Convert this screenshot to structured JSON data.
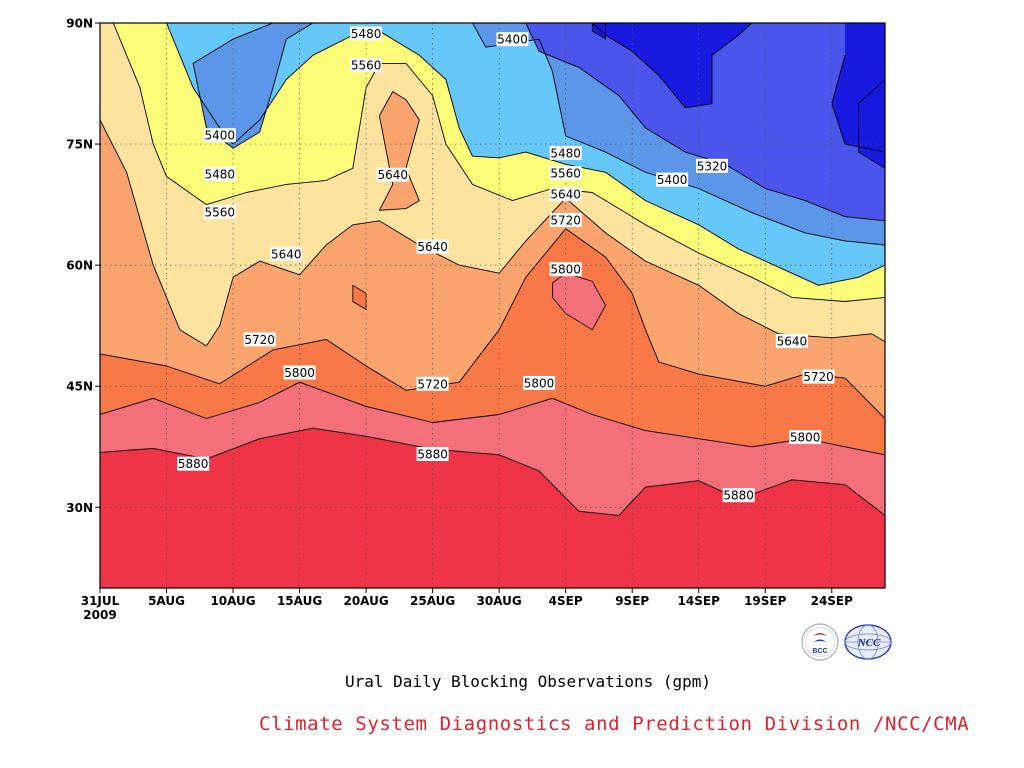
{
  "chart_data": {
    "type": "heatmap",
    "subtype": "filled-contour",
    "title": "Ural Daily Blocking Observations (gpm)",
    "variable_unit": "gpm",
    "x_axis": {
      "kind": "date",
      "start": "2009-07-31",
      "end": "2009-09-28",
      "tick_labels": [
        "31JUL",
        "5AUG",
        "10AUG",
        "15AUG",
        "20AUG",
        "25AUG",
        "30AUG",
        "4SEP",
        "9SEP",
        "14SEP",
        "19SEP",
        "24SEP"
      ],
      "tick_dates": [
        "2009-07-31",
        "2009-08-05",
        "2009-08-10",
        "2009-08-15",
        "2009-08-20",
        "2009-08-25",
        "2009-08-30",
        "2009-09-04",
        "2009-09-09",
        "2009-09-14",
        "2009-09-19",
        "2009-09-24"
      ],
      "year_label": "2009"
    },
    "y_axis": {
      "kind": "latitude",
      "range": [
        20,
        90
      ],
      "tick_values": [
        30,
        45,
        60,
        75,
        90
      ],
      "tick_labels": [
        "30N",
        "45N",
        "60N",
        "75N",
        "90N"
      ]
    },
    "grid": "dotted",
    "contour_levels": [
      5240,
      5320,
      5400,
      5480,
      5560,
      5640,
      5720,
      5800,
      5880
    ],
    "fill_colors": [
      {
        "above": 0,
        "color": "#1919e0"
      },
      {
        "above": 5240,
        "color": "#4b55ec"
      },
      {
        "above": 5320,
        "color": "#5b96e8"
      },
      {
        "above": 5400,
        "color": "#66c8fa"
      },
      {
        "above": 5480,
        "color": "#fdfd7a"
      },
      {
        "above": 5560,
        "color": "#fde39e"
      },
      {
        "above": 5640,
        "color": "#fba46e"
      },
      {
        "above": 5720,
        "color": "#f97848"
      },
      {
        "above": 5800,
        "color": "#f36f7a"
      },
      {
        "above": 5880,
        "color": "#f03448"
      }
    ],
    "contours": [
      {
        "level": 5880,
        "points": [
          [
            "2009-07-31",
            36.8
          ],
          [
            "2009-08-04",
            37.3
          ],
          [
            "2009-08-08",
            36.0
          ],
          [
            "2009-08-12",
            38.5
          ],
          [
            "2009-08-16",
            39.8
          ],
          [
            "2009-08-20",
            38.8
          ],
          [
            "2009-08-25",
            37.2
          ],
          [
            "2009-08-30",
            36.5
          ],
          [
            "2009-09-02",
            34.5
          ],
          [
            "2009-09-05",
            29.5
          ],
          [
            "2009-09-08",
            29.0
          ],
          [
            "2009-09-10",
            32.5
          ],
          [
            "2009-09-14",
            33.3
          ],
          [
            "2009-09-17",
            31.0
          ],
          [
            "2009-09-21",
            33.4
          ],
          [
            "2009-09-25",
            32.8
          ],
          [
            "2009-09-28",
            29.0
          ]
        ]
      },
      {
        "level": 5800,
        "points": [
          [
            "2009-07-31",
            41.5
          ],
          [
            "2009-08-04",
            43.5
          ],
          [
            "2009-08-08",
            41.0
          ],
          [
            "2009-08-12",
            43.0
          ],
          [
            "2009-08-15",
            45.5
          ],
          [
            "2009-08-20",
            42.5
          ],
          [
            "2009-08-25",
            40.5
          ],
          [
            "2009-08-30",
            41.5
          ],
          [
            "2009-09-03",
            43.5
          ],
          [
            "2009-09-06",
            41.5
          ],
          [
            "2009-09-10",
            39.5
          ],
          [
            "2009-09-14",
            38.5
          ],
          [
            "2009-09-18",
            37.5
          ],
          [
            "2009-09-22",
            38.5
          ],
          [
            "2009-09-25",
            37.5
          ],
          [
            "2009-09-28",
            36.5
          ]
        ]
      },
      {
        "level": 5720,
        "points": [
          [
            "2009-07-31",
            49.0
          ],
          [
            "2009-08-05",
            47.5
          ],
          [
            "2009-08-09",
            45.3
          ],
          [
            "2009-08-13",
            49.5
          ],
          [
            "2009-08-17",
            50.8
          ],
          [
            "2009-08-20",
            47.5
          ],
          [
            "2009-08-23",
            44.5
          ],
          [
            "2009-08-27",
            45.5
          ],
          [
            "2009-08-30",
            52.0
          ],
          [
            "2009-09-01",
            58.5
          ],
          [
            "2009-09-04",
            64.5
          ],
          [
            "2009-09-07",
            61.0
          ],
          [
            "2009-09-09",
            56.5
          ],
          [
            "2009-09-10",
            52.0
          ],
          [
            "2009-09-11",
            48.0
          ],
          [
            "2009-09-14",
            46.5
          ],
          [
            "2009-09-19",
            45.0
          ],
          [
            "2009-09-22",
            46.5
          ],
          [
            "2009-09-25",
            46.0
          ],
          [
            "2009-09-28",
            41.0
          ]
        ]
      },
      {
        "level": 5640,
        "points": [
          [
            "2009-07-31",
            78.0
          ],
          [
            "2009-08-02",
            71.5
          ],
          [
            "2009-08-04",
            60.0
          ],
          [
            "2009-08-06",
            52.0
          ],
          [
            "2009-08-08",
            50.0
          ],
          [
            "2009-08-09",
            52.5
          ],
          [
            "2009-08-10",
            58.5
          ],
          [
            "2009-08-12",
            60.5
          ],
          [
            "2009-08-15",
            58.8
          ],
          [
            "2009-08-17",
            62.5
          ],
          [
            "2009-08-19",
            65.0
          ],
          [
            "2009-08-21",
            65.5
          ],
          [
            "2009-08-24",
            62.5
          ],
          [
            "2009-08-27",
            60.0
          ],
          [
            "2009-08-30",
            59.0
          ],
          [
            "2009-09-01",
            63.0
          ],
          [
            "2009-09-04",
            68.3
          ],
          [
            "2009-09-07",
            64.0
          ],
          [
            "2009-09-10",
            60.5
          ],
          [
            "2009-09-14",
            57.5
          ],
          [
            "2009-09-17",
            54.0
          ],
          [
            "2009-09-20",
            51.5
          ],
          [
            "2009-09-24",
            51.0
          ],
          [
            "2009-09-27",
            51.5
          ],
          [
            "2009-09-28",
            50.5
          ]
        ]
      },
      {
        "level": 5640,
        "closed": true,
        "points": [
          [
            "2009-08-21",
            66.8
          ],
          [
            "2009-08-22",
            70.0
          ],
          [
            "2009-08-21",
            78.5
          ],
          [
            "2009-08-22",
            81.5
          ],
          [
            "2009-08-23",
            80.5
          ],
          [
            "2009-08-24",
            78.0
          ],
          [
            "2009-08-23",
            72.0
          ],
          [
            "2009-08-24",
            68.0
          ],
          [
            "2009-08-23",
            67.0
          ]
        ]
      },
      {
        "level": 5560,
        "points": [
          [
            "2009-08-01",
            90.0
          ],
          [
            "2009-08-03",
            82.0
          ],
          [
            "2009-08-04",
            75.0
          ],
          [
            "2009-08-05",
            71.0
          ],
          [
            "2009-08-08",
            67.5
          ],
          [
            "2009-08-11",
            69.0
          ],
          [
            "2009-08-14",
            70.0
          ],
          [
            "2009-08-17",
            70.5
          ],
          [
            "2009-08-19",
            72.0
          ],
          [
            "2009-08-20",
            82.0
          ],
          [
            "2009-08-21",
            85.0
          ],
          [
            "2009-08-23",
            85.0
          ],
          [
            "2009-08-25",
            81.0
          ],
          [
            "2009-08-26",
            75.0
          ],
          [
            "2009-08-28",
            70.0
          ],
          [
            "2009-08-31",
            68.0
          ],
          [
            "2009-09-03",
            69.5
          ],
          [
            "2009-09-06",
            69.0
          ],
          [
            "2009-09-10",
            65.0
          ],
          [
            "2009-09-14",
            61.5
          ],
          [
            "2009-09-18",
            58.5
          ],
          [
            "2009-09-21",
            56.0
          ],
          [
            "2009-09-25",
            55.5
          ],
          [
            "2009-09-28",
            56.0
          ]
        ]
      },
      {
        "level": 5480,
        "points": [
          [
            "2009-08-05",
            90.0
          ],
          [
            "2009-08-07",
            82.0
          ],
          [
            "2009-08-09",
            77.0
          ],
          [
            "2009-08-10",
            75.0
          ],
          [
            "2009-08-12",
            78.0
          ],
          [
            "2009-08-14",
            83.0
          ],
          [
            "2009-08-16",
            86.0
          ],
          [
            "2009-08-19",
            88.5
          ],
          [
            "2009-08-21",
            89.0
          ],
          [
            "2009-08-24",
            86.0
          ],
          [
            "2009-08-26",
            83.0
          ],
          [
            "2009-08-27",
            77.0
          ],
          [
            "2009-08-28",
            73.5
          ],
          [
            "2009-08-30",
            73.3
          ],
          [
            "2009-09-01",
            74.0
          ],
          [
            "2009-09-04",
            72.5
          ],
          [
            "2009-09-07",
            71.5
          ],
          [
            "2009-09-10",
            68.0
          ],
          [
            "2009-09-14",
            65.0
          ],
          [
            "2009-09-17",
            62.0
          ],
          [
            "2009-09-21",
            59.0
          ],
          [
            "2009-09-23",
            57.5
          ],
          [
            "2009-09-26",
            58.5
          ],
          [
            "2009-09-28",
            60.0
          ]
        ]
      },
      {
        "level": 5400,
        "closed": true,
        "points": [
          [
            "2009-08-07",
            85.0
          ],
          [
            "2009-08-08",
            77.0
          ],
          [
            "2009-08-10",
            74.5
          ],
          [
            "2009-08-12",
            76.5
          ],
          [
            "2009-08-13",
            82.0
          ],
          [
            "2009-08-14",
            88.0
          ],
          [
            "2009-08-16",
            90.0
          ],
          [
            "2009-08-13",
            90.0
          ],
          [
            "2009-08-10",
            88.0
          ]
        ]
      },
      {
        "level": 5400,
        "points": [
          [
            "2009-08-28",
            90.0
          ],
          [
            "2009-08-29",
            87.0
          ],
          [
            "2009-09-02",
            88.0
          ],
          [
            "2009-09-03",
            84.0
          ],
          [
            "2009-09-04",
            76.0
          ],
          [
            "2009-09-07",
            74.0
          ],
          [
            "2009-09-10",
            71.5
          ],
          [
            "2009-09-14",
            69.5
          ],
          [
            "2009-09-18",
            66.5
          ],
          [
            "2009-09-22",
            64.0
          ],
          [
            "2009-09-25",
            63.0
          ],
          [
            "2009-09-28",
            62.5
          ]
        ]
      },
      {
        "level": 5320,
        "points": [
          [
            "2009-09-01",
            90.0
          ],
          [
            "2009-09-02",
            86.5
          ],
          [
            "2009-09-05",
            84.5
          ],
          [
            "2009-09-08",
            81.0
          ],
          [
            "2009-09-10",
            77.0
          ],
          [
            "2009-09-13",
            74.0
          ],
          [
            "2009-09-16",
            72.5
          ],
          [
            "2009-09-19",
            69.5
          ],
          [
            "2009-09-22",
            68.0
          ],
          [
            "2009-09-25",
            66.0
          ],
          [
            "2009-09-28",
            65.5
          ]
        ]
      },
      {
        "level": 5240,
        "points": [
          [
            "2009-09-06",
            90.0
          ],
          [
            "2009-09-07",
            88.5
          ],
          [
            "2009-09-09",
            86.5
          ],
          [
            "2009-09-11",
            83.5
          ],
          [
            "2009-09-13",
            79.5
          ],
          [
            "2009-09-15",
            80.0
          ],
          [
            "2009-09-15",
            86.0
          ],
          [
            "2009-09-17",
            88.5
          ],
          [
            "2009-09-18",
            90.0
          ]
        ]
      },
      {
        "level": 5240,
        "points": [
          [
            "2009-09-25",
            86.0
          ],
          [
            "2009-09-24",
            80.0
          ],
          [
            "2009-09-25",
            75.0
          ],
          [
            "2009-09-28",
            74.0
          ]
        ]
      }
    ],
    "extrema_regions": [
      {
        "kind": "high",
        "above": 5800,
        "points": [
          [
            "2009-09-03",
            57.8
          ],
          [
            "2009-09-04",
            59.0
          ],
          [
            "2009-09-06",
            58.0
          ],
          [
            "2009-09-07",
            55.0
          ],
          [
            "2009-09-06",
            52.0
          ],
          [
            "2009-09-04",
            54.0
          ],
          [
            "2009-09-03",
            56.0
          ]
        ]
      },
      {
        "kind": "high",
        "above": 5720,
        "points": [
          [
            "2009-08-19",
            57.5
          ],
          [
            "2009-08-20",
            56.5
          ],
          [
            "2009-08-20",
            54.5
          ],
          [
            "2009-08-19",
            55.5
          ]
        ]
      },
      {
        "kind": "low",
        "below": 5240,
        "points": [
          [
            "2009-09-06",
            90.0
          ],
          [
            "2009-09-06",
            89.0
          ],
          [
            "2009-09-07",
            88.0
          ],
          [
            "2009-09-07",
            90.0
          ]
        ]
      },
      {
        "kind": "low",
        "below": 5240,
        "points": [
          [
            "2009-09-28",
            83.0
          ],
          [
            "2009-09-26",
            80.0
          ],
          [
            "2009-09-26",
            74.0
          ],
          [
            "2009-09-28",
            72.0
          ]
        ]
      }
    ],
    "contour_labels": [
      {
        "text": "5480",
        "date": "2009-08-20",
        "lat": 88.7
      },
      {
        "text": "5400",
        "date": "2009-08-31",
        "lat": 88.0
      },
      {
        "text": "5560",
        "date": "2009-08-20",
        "lat": 84.8
      },
      {
        "text": "5400",
        "date": "2009-08-09",
        "lat": 76.1
      },
      {
        "text": "5640",
        "date": "2009-08-22",
        "lat": 71.2
      },
      {
        "text": "5480",
        "date": "2009-08-09",
        "lat": 71.3
      },
      {
        "text": "5480",
        "date": "2009-09-04",
        "lat": 73.9
      },
      {
        "text": "5320",
        "date": "2009-09-15",
        "lat": 72.3
      },
      {
        "text": "5560",
        "date": "2009-09-04",
        "lat": 71.4
      },
      {
        "text": "5400",
        "date": "2009-09-12",
        "lat": 70.6
      },
      {
        "text": "5640",
        "date": "2009-09-04",
        "lat": 68.8
      },
      {
        "text": "5560",
        "date": "2009-08-09",
        "lat": 66.6
      },
      {
        "text": "5720",
        "date": "2009-09-04",
        "lat": 65.6
      },
      {
        "text": "5640",
        "date": "2009-08-14",
        "lat": 61.4
      },
      {
        "text": "5640",
        "date": "2009-08-25",
        "lat": 62.3
      },
      {
        "text": "5800",
        "date": "2009-09-04",
        "lat": 59.5
      },
      {
        "text": "5720",
        "date": "2009-08-12",
        "lat": 50.8
      },
      {
        "text": "5640",
        "date": "2009-09-21",
        "lat": 50.6
      },
      {
        "text": "5800",
        "date": "2009-08-15",
        "lat": 46.7
      },
      {
        "text": "5720",
        "date": "2009-09-23",
        "lat": 46.2
      },
      {
        "text": "5720",
        "date": "2009-08-25",
        "lat": 45.3
      },
      {
        "text": "5800",
        "date": "2009-09-02",
        "lat": 45.4
      },
      {
        "text": "5800",
        "date": "2009-09-22",
        "lat": 38.7
      },
      {
        "text": "5880",
        "date": "2009-08-07",
        "lat": 35.4
      },
      {
        "text": "5880",
        "date": "2009-08-25",
        "lat": 36.6
      },
      {
        "text": "5880",
        "date": "2009-09-17",
        "lat": 31.5
      }
    ]
  },
  "footer": {
    "division": "Climate System Diagnostics and Prediction Division /NCC/CMA",
    "logo_bcc_text": "BCC",
    "logo_ncc_text": "NCC"
  }
}
